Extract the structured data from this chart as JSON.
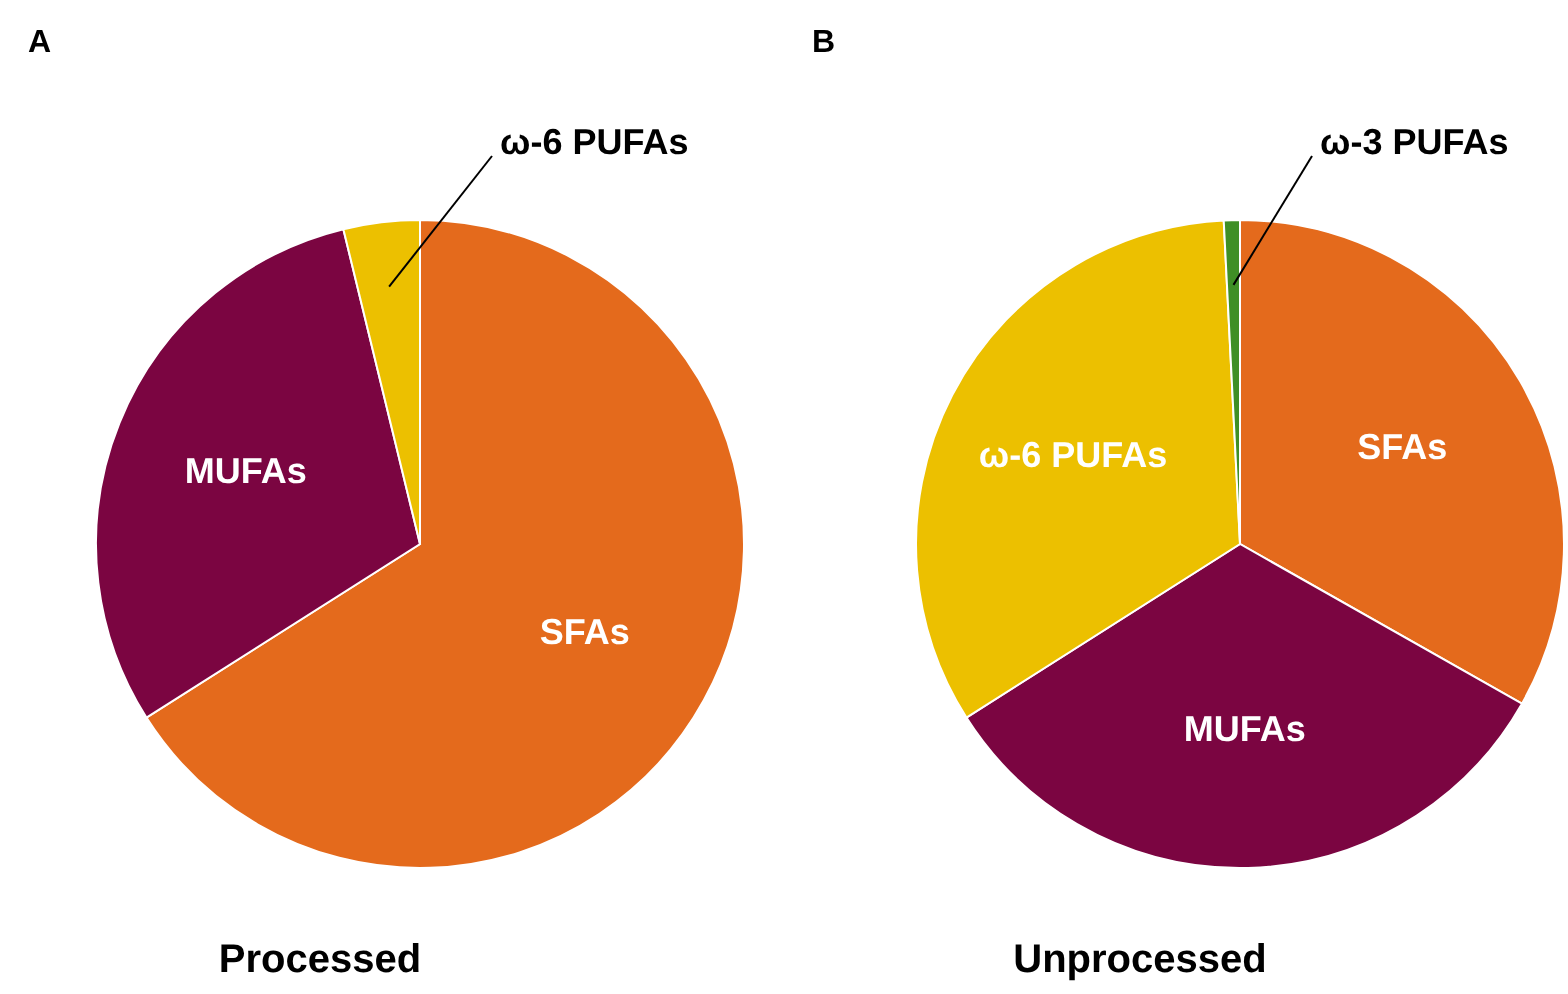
{
  "chart_data": [
    {
      "type": "pie",
      "title": "A",
      "xlabel": "Processed",
      "categories": [
        "SFAs",
        "MUFAs",
        "ω-6 PUFAs"
      ],
      "values": [
        66,
        30.2,
        3.8
      ],
      "colors": [
        "#e46a1c",
        "#7b0541",
        "#ecc000"
      ]
    },
    {
      "type": "pie",
      "title": "B",
      "xlabel": "Unprocessed",
      "categories": [
        "SFAs",
        "MUFAs",
        "ω-6 PUFAs",
        "ω-3 PUFAs"
      ],
      "values": [
        33.2,
        32.8,
        33.2,
        0.8
      ],
      "colors": [
        "#e46a1c",
        "#7b0541",
        "#ecc000",
        "#3f8f26"
      ]
    }
  ]
}
